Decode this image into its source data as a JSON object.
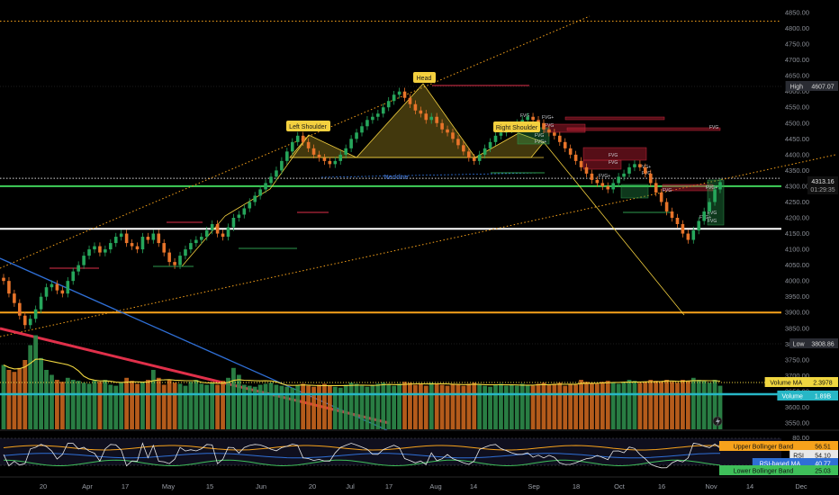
{
  "chart_data": {
    "type": "candlestick",
    "title": "",
    "price_axis": {
      "ticks": [
        4850,
        4800,
        4750,
        4700,
        4650,
        4600,
        4550,
        4500,
        4450,
        4400,
        4350,
        4300,
        4250,
        4200,
        4150,
        4100,
        4050,
        4000,
        3950,
        3900,
        3850,
        3800,
        3750,
        3700,
        3650,
        3600,
        3550
      ],
      "range": [
        3530,
        4870
      ]
    },
    "time_axis": {
      "labels": [
        "20",
        "Apr",
        "17",
        "May",
        "15",
        "Jun",
        "20",
        "Jul",
        "17",
        "Aug",
        "14",
        "Sep",
        "18",
        "Oct",
        "16",
        "Nov",
        "14",
        "Dec"
      ]
    },
    "price_tags": {
      "high": {
        "label": "High",
        "value": "4607.07"
      },
      "current": {
        "value": "4313.16",
        "countdown": "01:29:35"
      },
      "low": {
        "label": "Low",
        "value": "3808.86"
      },
      "volume_ma": {
        "label": "Volume MA",
        "value": "2.3978"
      },
      "volume": {
        "label": "Volume",
        "value": "1.89B"
      }
    },
    "pattern_labels": [
      "Left Shoulder",
      "Head",
      "Right Shoulder"
    ],
    "neckline_label": "Neckline",
    "fvg_label": "FVG",
    "fvg_plus_label": "FVG+",
    "horizontal_levels": [
      {
        "value": 4823,
        "color": "#f7a21b",
        "style": "dotted"
      },
      {
        "value": 4300,
        "color": "#3fcf5a",
        "style": "solid"
      },
      {
        "value": 4165,
        "color": "#ffffff",
        "style": "solid"
      },
      {
        "value": 3900,
        "color": "#f7a21b",
        "style": "solid"
      }
    ],
    "close_series": [
      4000,
      3960,
      3930,
      3890,
      3860,
      3880,
      3910,
      3950,
      3980,
      3990,
      3970,
      3960,
      4000,
      4030,
      4050,
      4080,
      4100,
      4110,
      4090,
      4100,
      4120,
      4140,
      4150,
      4120,
      4110,
      4100,
      4140,
      4130,
      4150,
      4120,
      4090,
      4060,
      4050,
      4080,
      4100,
      4120,
      4130,
      4140,
      4160,
      4180,
      4150,
      4140,
      4170,
      4200,
      4210,
      4230,
      4250,
      4270,
      4290,
      4310,
      4330,
      4350,
      4380,
      4410,
      4440,
      4460,
      4440,
      4420,
      4400,
      4390,
      4380,
      4370,
      4380,
      4400,
      4420,
      4450,
      4470,
      4490,
      4510,
      4520,
      4530,
      4550,
      4570,
      4590,
      4600,
      4580,
      4560,
      4540,
      4530,
      4510,
      4520,
      4500,
      4480,
      4470,
      4450,
      4430,
      4410,
      4390,
      4380,
      4400,
      4420,
      4440,
      4460,
      4470,
      4480,
      4490,
      4500,
      4510,
      4520,
      4510,
      4500,
      4480,
      4470,
      4460,
      4440,
      4420,
      4400,
      4380,
      4360,
      4340,
      4320,
      4310,
      4300,
      4290,
      4310,
      4330,
      4340,
      4360,
      4370,
      4360,
      4340,
      4310,
      4280,
      4250,
      4220,
      4200,
      4180,
      4150,
      4130,
      4160,
      4190,
      4220,
      4250,
      4290,
      4313
    ],
    "volume_series": [
      0.65,
      0.6,
      0.58,
      0.62,
      0.7,
      0.85,
      0.95,
      0.72,
      0.6,
      0.55,
      0.5,
      0.48,
      0.52,
      0.5,
      0.49,
      0.47,
      0.46,
      0.5,
      0.48,
      0.5,
      0.45,
      0.44,
      0.47,
      0.52,
      0.49,
      0.46,
      0.48,
      0.5,
      0.6,
      0.52,
      0.45,
      0.5,
      0.47,
      0.46,
      0.44,
      0.48,
      0.5,
      0.46,
      0.45,
      0.47,
      0.45,
      0.49,
      0.52,
      0.62,
      0.55,
      0.45,
      0.44,
      0.43,
      0.45,
      0.46,
      0.47,
      0.45,
      0.44,
      0.43,
      0.42,
      0.45,
      0.46,
      0.44,
      0.43,
      0.45,
      0.46,
      0.44,
      0.43,
      0.42,
      0.45,
      0.47,
      0.46,
      0.44,
      0.43,
      0.45,
      0.46,
      0.47,
      0.45,
      0.44,
      0.46,
      0.48,
      0.47,
      0.45,
      0.46,
      0.44,
      0.47,
      0.46,
      0.45,
      0.44,
      0.46,
      0.45,
      0.44,
      0.46,
      0.47,
      0.45,
      0.44,
      0.43,
      0.45,
      0.46,
      0.44,
      0.45,
      0.44,
      0.46,
      0.45,
      0.44,
      0.46,
      0.47,
      0.45,
      0.46,
      0.47,
      0.44,
      0.46,
      0.45,
      0.5,
      0.48,
      0.47,
      0.46,
      0.48,
      0.49,
      0.47,
      0.46,
      0.48,
      0.5,
      0.49,
      0.47,
      0.48,
      0.5,
      0.49,
      0.48,
      0.5,
      0.48,
      0.47,
      0.5,
      0.49,
      0.52,
      0.5,
      0.49,
      0.47,
      0.5,
      0.44
    ],
    "rsi_panel": {
      "upper_bollinger": {
        "label": "Upper Bollinger Band",
        "value": "56.51"
      },
      "rsi": {
        "label": "RSI",
        "value": "54.10"
      },
      "rsi_ma": {
        "label": "RSI-based MA",
        "value": "40.77"
      },
      "lower_bollinger": {
        "label": "Lower Bollinger Band",
        "value": "25.03"
      }
    },
    "colors": {
      "up": "#26a65b",
      "down": "#e8742a",
      "volume_up": "#2e8b4a",
      "volume_down": "#c8651e",
      "yellow": "#f4d03f",
      "orange": "#f7a21b",
      "red": "#e0304a",
      "blue": "#2f6fd6",
      "teal": "#27b7c6"
    }
  }
}
